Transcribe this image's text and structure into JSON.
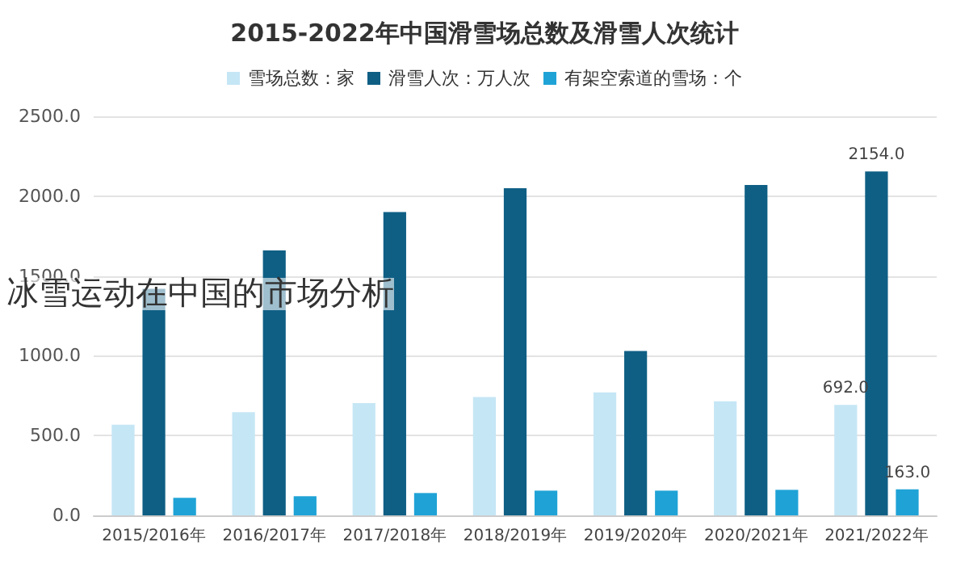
{
  "chart_data": {
    "type": "bar",
    "title": "2015-2022年中国滑雪场总数及滑雪人次统计",
    "annotations": [
      "冰雪运动在中国的市场分析"
    ],
    "categories": [
      "2015/2016年",
      "2016/2017年",
      "2017/2018年",
      "2018/2019年",
      "2019/2020年",
      "2020/2021年",
      "2021/2022年"
    ],
    "series": [
      {
        "name": "雪场总数：家",
        "color": "#c5e6f5",
        "values": [
          568,
          646,
          703,
          742,
          770,
          715,
          692
        ],
        "value_labels": [
          null,
          null,
          null,
          null,
          null,
          null,
          "692.0"
        ]
      },
      {
        "name": "滑雪人次：万人次",
        "color": "#0f5f85",
        "values": [
          1420,
          1660,
          1900,
          2050,
          1030,
          2070,
          2154
        ],
        "value_labels": [
          null,
          null,
          null,
          null,
          null,
          null,
          "2154.0"
        ]
      },
      {
        "name": "有架空索道的雪场：个",
        "color": "#1fa3d6",
        "values": [
          110,
          120,
          140,
          155,
          155,
          160,
          163
        ],
        "value_labels": [
          null,
          null,
          null,
          null,
          null,
          null,
          "163.0"
        ]
      }
    ],
    "ylim": [
      0,
      2500
    ],
    "yticks": [
      {
        "value": 0,
        "label": "0.0"
      },
      {
        "value": 500,
        "label": "500.0"
      },
      {
        "value": 1000,
        "label": "1000.0"
      },
      {
        "value": 1500,
        "label": "1500.0"
      },
      {
        "value": 2000,
        "label": "2000.0"
      },
      {
        "value": 2500,
        "label": "2500.0"
      }
    ],
    "grid": "y",
    "legend": "top"
  }
}
